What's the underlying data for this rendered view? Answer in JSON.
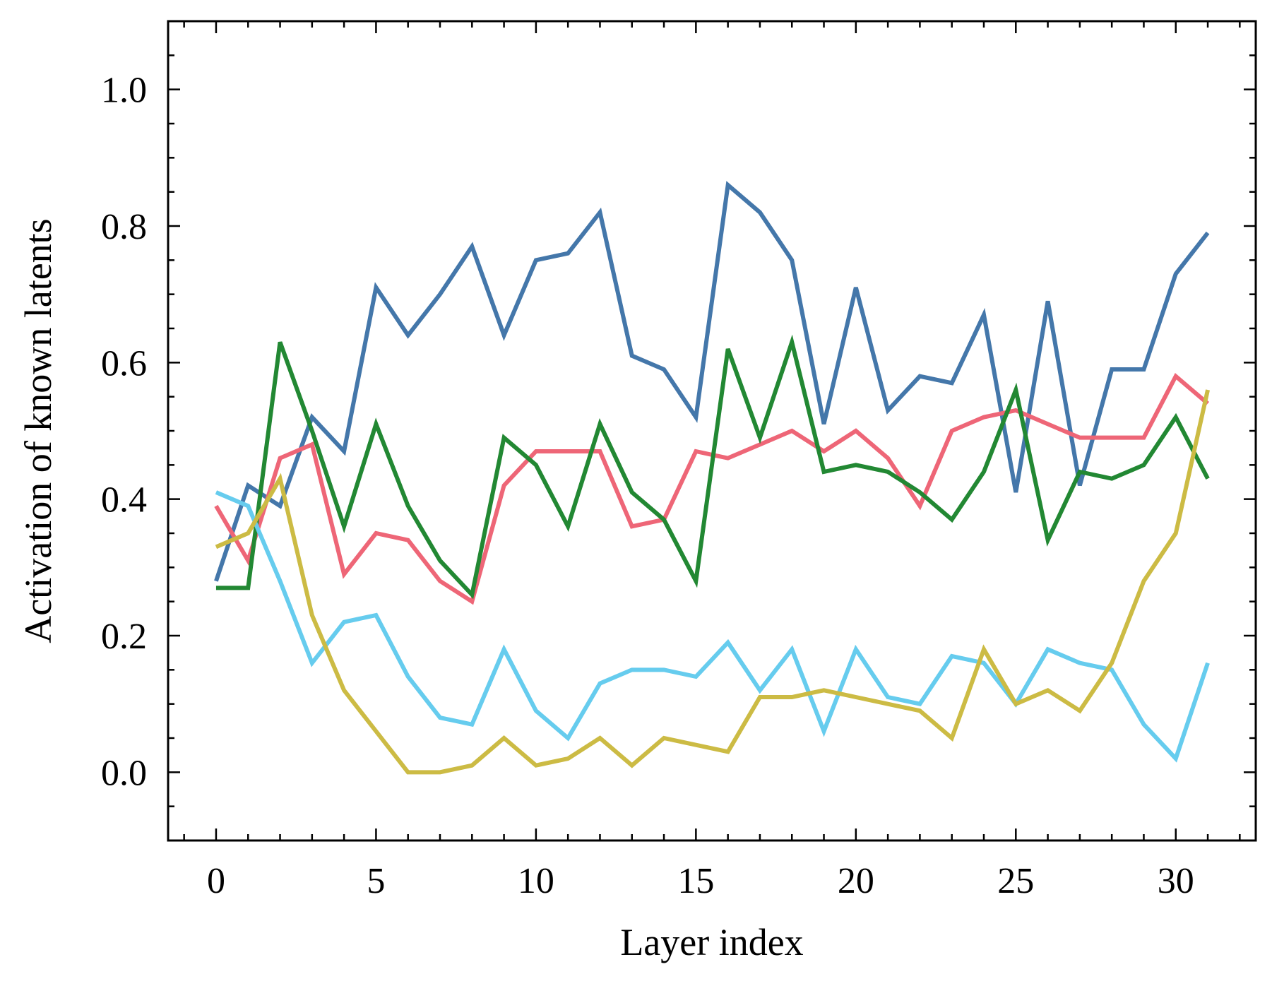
{
  "chart_data": {
    "type": "line",
    "title": "",
    "xlabel": "Layer index",
    "ylabel": "Activation of known latents",
    "xlim": [
      -1.5,
      32.5
    ],
    "ylim": [
      -0.1,
      1.1
    ],
    "xticks": [
      0,
      5,
      10,
      15,
      20,
      25,
      30
    ],
    "xtick_labels": [
      "0",
      "5",
      "10",
      "15",
      "20",
      "25",
      "30"
    ],
    "xminor_step": 1,
    "yticks": [
      0.0,
      0.2,
      0.4,
      0.6,
      0.8,
      1.0
    ],
    "ytick_labels": [
      "0.0",
      "0.2",
      "0.4",
      "0.6",
      "0.8",
      "1.0"
    ],
    "yminor_step": 0.05,
    "grid": false,
    "legend": "none",
    "x": [
      0,
      1,
      2,
      3,
      4,
      5,
      6,
      7,
      8,
      9,
      10,
      11,
      12,
      13,
      14,
      15,
      16,
      17,
      18,
      19,
      20,
      21,
      22,
      23,
      24,
      25,
      26,
      27,
      28,
      29,
      30,
      31
    ],
    "series": [
      {
        "name": "blue",
        "color": "#4477aa",
        "values": [
          0.28,
          0.42,
          0.39,
          0.52,
          0.47,
          0.71,
          0.64,
          0.7,
          0.77,
          0.64,
          0.75,
          0.76,
          0.82,
          0.61,
          0.59,
          0.52,
          0.86,
          0.82,
          0.75,
          0.51,
          0.71,
          0.53,
          0.58,
          0.57,
          0.67,
          0.41,
          0.69,
          0.42,
          0.59,
          0.59,
          0.73,
          0.79
        ]
      },
      {
        "name": "red",
        "color": "#ee6677",
        "values": [
          0.39,
          0.31,
          0.46,
          0.48,
          0.29,
          0.35,
          0.34,
          0.28,
          0.25,
          0.42,
          0.47,
          0.47,
          0.47,
          0.36,
          0.37,
          0.47,
          0.46,
          0.48,
          0.5,
          0.47,
          0.5,
          0.46,
          0.39,
          0.5,
          0.52,
          0.53,
          0.51,
          0.49,
          0.49,
          0.49,
          0.58,
          0.54
        ]
      },
      {
        "name": "green",
        "color": "#228833",
        "values": [
          0.27,
          0.27,
          0.63,
          0.5,
          0.36,
          0.51,
          0.39,
          0.31,
          0.26,
          0.49,
          0.45,
          0.36,
          0.51,
          0.41,
          0.37,
          0.28,
          0.62,
          0.49,
          0.63,
          0.44,
          0.45,
          0.44,
          0.41,
          0.37,
          0.44,
          0.56,
          0.34,
          0.44,
          0.43,
          0.45,
          0.52,
          0.43
        ]
      },
      {
        "name": "cyan",
        "color": "#66ccee",
        "values": [
          0.41,
          0.39,
          0.28,
          0.16,
          0.22,
          0.23,
          0.14,
          0.08,
          0.07,
          0.18,
          0.09,
          0.05,
          0.13,
          0.15,
          0.15,
          0.14,
          0.19,
          0.12,
          0.18,
          0.06,
          0.18,
          0.11,
          0.1,
          0.17,
          0.16,
          0.1,
          0.18,
          0.16,
          0.15,
          0.07,
          0.02,
          0.16
        ]
      },
      {
        "name": "yellow",
        "color": "#ccbb44",
        "values": [
          0.33,
          0.35,
          0.43,
          0.23,
          0.12,
          0.06,
          0.0,
          0.0,
          0.01,
          0.05,
          0.01,
          0.02,
          0.05,
          0.01,
          0.05,
          0.04,
          0.03,
          0.11,
          0.11,
          0.12,
          0.11,
          0.1,
          0.09,
          0.05,
          0.18,
          0.1,
          0.12,
          0.09,
          0.16,
          0.28,
          0.35,
          0.56
        ]
      }
    ]
  }
}
